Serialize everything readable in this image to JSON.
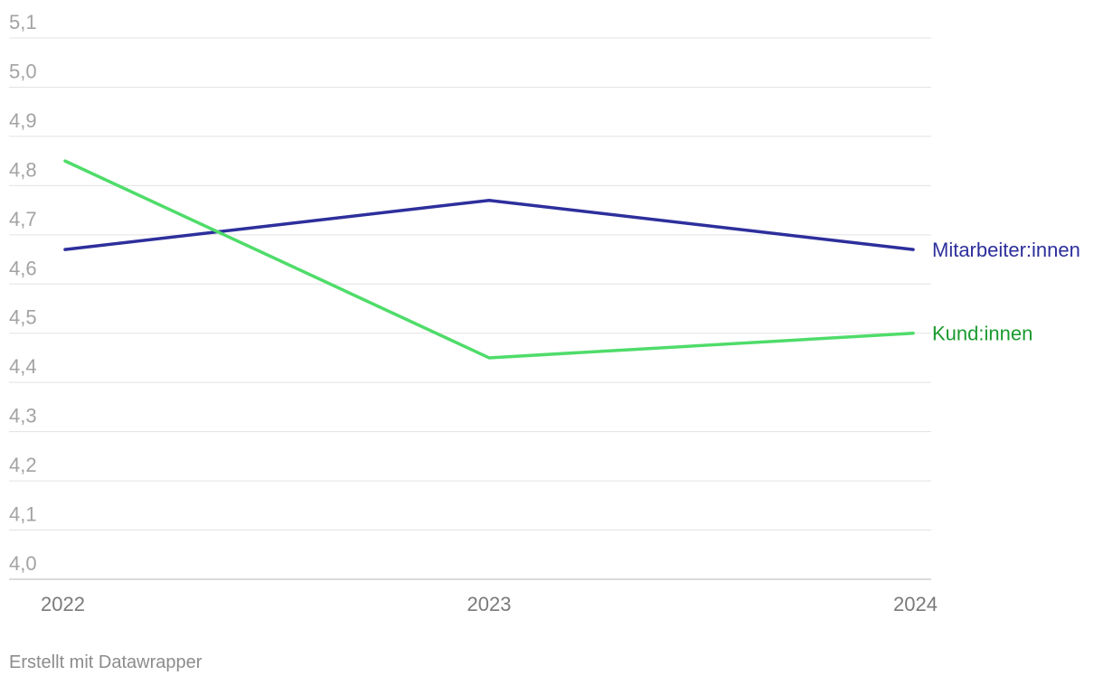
{
  "chart_data": {
    "type": "line",
    "x": [
      "2022",
      "2023",
      "2024"
    ],
    "ylim": [
      4.0,
      5.1
    ],
    "yticks": [
      4.0,
      4.1,
      4.2,
      4.3,
      4.4,
      4.5,
      4.6,
      4.7,
      4.8,
      4.9,
      5.0,
      5.1
    ],
    "ytick_labels": [
      "4,0",
      "4,1",
      "4,2",
      "4,3",
      "4,4",
      "4,5",
      "4,6",
      "4,7",
      "4,8",
      "4,9",
      "5,0",
      "5,1"
    ],
    "grid": true,
    "legend": "inline-right",
    "series": [
      {
        "name": "Mitarbeiter:innen",
        "values": [
          4.67,
          4.77,
          4.67
        ],
        "color": "#2d2f9c"
      },
      {
        "name": "Kund:innen",
        "values": [
          4.85,
          4.45,
          4.5
        ],
        "color": "#4fdc6a",
        "label_color": "#1a9a2e"
      }
    ]
  },
  "footer": {
    "credit": "Erstellt mit Datawrapper"
  }
}
